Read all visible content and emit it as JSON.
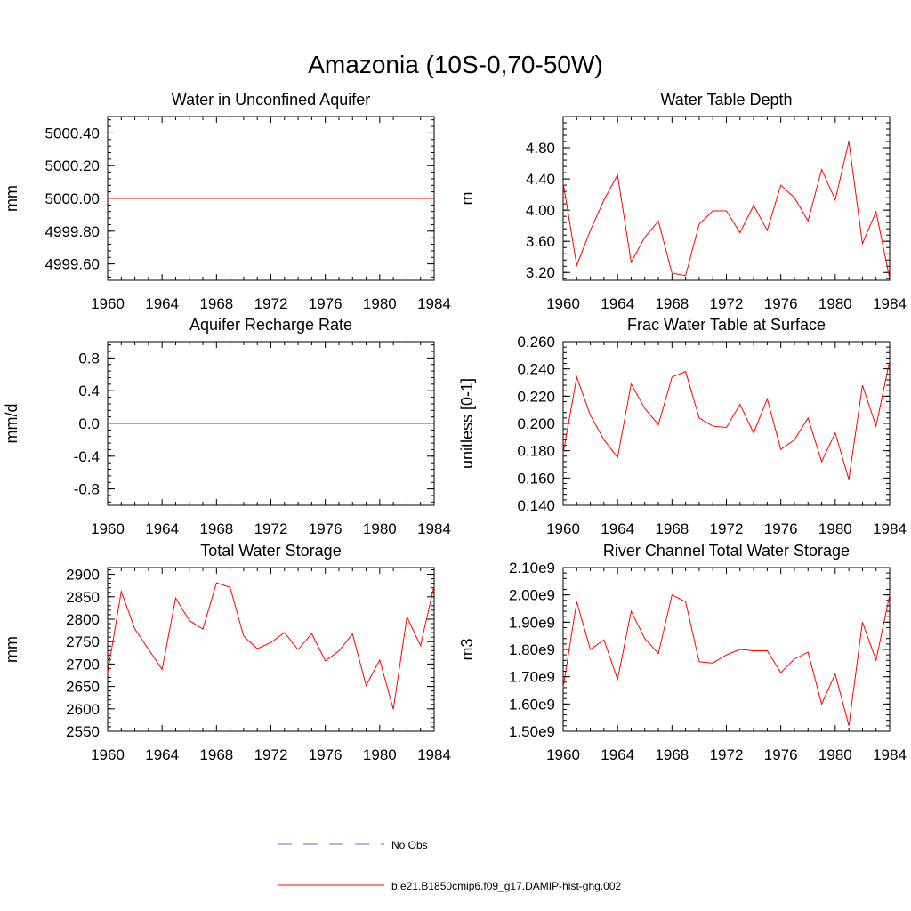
{
  "main_title": "Amazonia (10S-0,70-50W)",
  "legend": {
    "entries": [
      {
        "label": "No Obs",
        "color": "#5a6ad0",
        "dash": "dashed"
      },
      {
        "label": "b.e21.B1850cmip6.f09_g17.DAMIP-hist-ghg.002",
        "color": "#ff0000",
        "dash": "solid"
      }
    ]
  },
  "chart_data": [
    {
      "type": "line",
      "title": "Water in Unconfined Aquifer",
      "ylabel": "mm",
      "xlim": [
        1960,
        1984
      ],
      "ylim": [
        4999.5,
        5000.5
      ],
      "xticks": [
        1960,
        1964,
        1968,
        1972,
        1976,
        1980,
        1984
      ],
      "yticks": [
        4999.6,
        4999.8,
        5000.0,
        5000.2,
        5000.4
      ],
      "ytick_labels": [
        "4999.60",
        "4999.80",
        "5000.00",
        "5000.20",
        "5000.40"
      ],
      "x": [
        1960,
        1961,
        1962,
        1963,
        1964,
        1965,
        1966,
        1967,
        1968,
        1969,
        1970,
        1971,
        1972,
        1973,
        1974,
        1975,
        1976,
        1977,
        1978,
        1979,
        1980,
        1981,
        1982,
        1983,
        1984
      ],
      "series": [
        {
          "color": "#ff0000",
          "values": [
            5000,
            5000,
            5000,
            5000,
            5000,
            5000,
            5000,
            5000,
            5000,
            5000,
            5000,
            5000,
            5000,
            5000,
            5000,
            5000,
            5000,
            5000,
            5000,
            5000,
            5000,
            5000,
            5000,
            5000,
            5000
          ]
        }
      ]
    },
    {
      "type": "line",
      "title": "Water Table Depth",
      "ylabel": "m",
      "xlim": [
        1960,
        1984
      ],
      "ylim": [
        3.1,
        5.2
      ],
      "xticks": [
        1960,
        1964,
        1968,
        1972,
        1976,
        1980,
        1984
      ],
      "yticks": [
        3.2,
        3.6,
        4.0,
        4.4,
        4.8
      ],
      "ytick_labels": [
        "3.20",
        "3.60",
        "4.00",
        "4.40",
        "4.80"
      ],
      "x": [
        1960,
        1961,
        1962,
        1963,
        1964,
        1965,
        1966,
        1967,
        1968,
        1969,
        1970,
        1971,
        1972,
        1973,
        1974,
        1975,
        1976,
        1977,
        1978,
        1979,
        1980,
        1981,
        1982,
        1983,
        1984
      ],
      "series": [
        {
          "color": "#ff0000",
          "values": [
            4.35,
            3.29,
            3.74,
            4.13,
            4.45,
            3.33,
            3.65,
            3.86,
            3.19,
            3.16,
            3.82,
            3.99,
            3.99,
            3.71,
            4.06,
            3.74,
            4.32,
            4.16,
            3.86,
            4.52,
            4.13,
            4.88,
            3.57,
            3.98,
            3.12
          ]
        }
      ]
    },
    {
      "type": "line",
      "title": "Aquifer Recharge Rate",
      "ylabel": "mm/d",
      "xlim": [
        1960,
        1984
      ],
      "ylim": [
        -1.0,
        1.0
      ],
      "xticks": [
        1960,
        1964,
        1968,
        1972,
        1976,
        1980,
        1984
      ],
      "yticks": [
        -0.8,
        -0.4,
        0.0,
        0.4,
        0.8
      ],
      "ytick_labels": [
        "-0.8",
        "-0.4",
        "0.0",
        "0.4",
        "0.8"
      ],
      "x": [
        1960,
        1961,
        1962,
        1963,
        1964,
        1965,
        1966,
        1967,
        1968,
        1969,
        1970,
        1971,
        1972,
        1973,
        1974,
        1975,
        1976,
        1977,
        1978,
        1979,
        1980,
        1981,
        1982,
        1983,
        1984
      ],
      "series": [
        {
          "color": "#ff0000",
          "values": [
            0,
            0,
            0,
            0,
            0,
            0,
            0,
            0,
            0,
            0,
            0,
            0,
            0,
            0,
            0,
            0,
            0,
            0,
            0,
            0,
            0,
            0,
            0,
            0,
            0
          ]
        }
      ]
    },
    {
      "type": "line",
      "title": "Frac Water Table at Surface",
      "ylabel": "unitless [0-1]",
      "xlim": [
        1960,
        1984
      ],
      "ylim": [
        0.14,
        0.26
      ],
      "xticks": [
        1960,
        1964,
        1968,
        1972,
        1976,
        1980,
        1984
      ],
      "yticks": [
        0.14,
        0.16,
        0.18,
        0.2,
        0.22,
        0.24,
        0.26
      ],
      "ytick_labels": [
        "0.140",
        "0.160",
        "0.180",
        "0.200",
        "0.220",
        "0.240",
        "0.260"
      ],
      "x": [
        1960,
        1961,
        1962,
        1963,
        1964,
        1965,
        1966,
        1967,
        1968,
        1969,
        1970,
        1971,
        1972,
        1973,
        1974,
        1975,
        1976,
        1977,
        1978,
        1979,
        1980,
        1981,
        1982,
        1983,
        1984
      ],
      "series": [
        {
          "color": "#ff0000",
          "values": [
            0.178,
            0.234,
            0.206,
            0.188,
            0.175,
            0.229,
            0.211,
            0.199,
            0.234,
            0.238,
            0.204,
            0.198,
            0.197,
            0.214,
            0.193,
            0.218,
            0.181,
            0.188,
            0.204,
            0.172,
            0.193,
            0.159,
            0.228,
            0.198,
            0.246
          ]
        }
      ]
    },
    {
      "type": "line",
      "title": "Total Water Storage",
      "ylabel": "mm",
      "xlim": [
        1960,
        1984
      ],
      "ylim": [
        2550,
        2915
      ],
      "xticks": [
        1960,
        1964,
        1968,
        1972,
        1976,
        1980,
        1984
      ],
      "yticks": [
        2550,
        2600,
        2650,
        2700,
        2750,
        2800,
        2850,
        2900
      ],
      "ytick_labels": [
        "2550",
        "2600",
        "2650",
        "2700",
        "2750",
        "2800",
        "2850",
        "2900"
      ],
      "x": [
        1960,
        1961,
        1962,
        1963,
        1964,
        1965,
        1966,
        1967,
        1968,
        1969,
        1970,
        1971,
        1972,
        1973,
        1974,
        1975,
        1976,
        1977,
        1978,
        1979,
        1980,
        1981,
        1982,
        1983,
        1984
      ],
      "series": [
        {
          "color": "#ff0000",
          "values": [
            2680,
            2862,
            2778,
            2733,
            2688,
            2847,
            2797,
            2778,
            2881,
            2871,
            2762,
            2734,
            2748,
            2770,
            2732,
            2768,
            2707,
            2729,
            2767,
            2652,
            2709,
            2599,
            2805,
            2741,
            2875
          ]
        }
      ]
    },
    {
      "type": "line",
      "title": "River Channel Total Water Storage",
      "ylabel": "m3",
      "xlim": [
        1960,
        1984
      ],
      "ylim": [
        1500000000.0,
        2100000000.0
      ],
      "xticks": [
        1960,
        1964,
        1968,
        1972,
        1976,
        1980,
        1984
      ],
      "yticks": [
        1500000000.0,
        1600000000.0,
        1700000000.0,
        1800000000.0,
        1900000000.0,
        2000000000.0,
        2100000000.0
      ],
      "ytick_labels": [
        "1.50e9",
        "1.60e9",
        "1.70e9",
        "1.80e9",
        "1.90e9",
        "2.00e9",
        "2.10e9"
      ],
      "x": [
        1960,
        1961,
        1962,
        1963,
        1964,
        1965,
        1966,
        1967,
        1968,
        1969,
        1970,
        1971,
        1972,
        1973,
        1974,
        1975,
        1976,
        1977,
        1978,
        1979,
        1980,
        1981,
        1982,
        1983,
        1984
      ],
      "series": [
        {
          "color": "#ff0000",
          "values": [
            1660000000.0,
            1975000000.0,
            1800000000.0,
            1835000000.0,
            1690000000.0,
            1940000000.0,
            1840000000.0,
            1785000000.0,
            2000000000.0,
            1975000000.0,
            1755000000.0,
            1750000000.0,
            1780000000.0,
            1800000000.0,
            1795000000.0,
            1795000000.0,
            1715000000.0,
            1765000000.0,
            1790000000.0,
            1600000000.0,
            1710000000.0,
            1520000000.0,
            1900000000.0,
            1760000000.0,
            2000000000.0
          ]
        }
      ]
    }
  ]
}
